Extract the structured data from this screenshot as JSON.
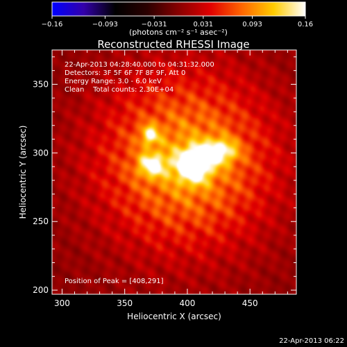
{
  "chart_data": {
    "type": "heatmap",
    "title": "Reconstructed RHESSI Image",
    "xlabel": "Heliocentric X (arcsec)",
    "ylabel": "Heliocentric Y (arcsec)",
    "xlim": [
      292,
      487
    ],
    "ylim": [
      197,
      375
    ],
    "x_ticks": [
      300,
      350,
      400,
      450
    ],
    "y_ticks": [
      200,
      250,
      300,
      350
    ],
    "colorbar": {
      "range": [
        -0.16,
        0.16
      ],
      "ticks": [
        {
          "value": -0.16,
          "label": "−0.16"
        },
        {
          "value": -0.093,
          "label": "−0.093"
        },
        {
          "value": -0.031,
          "label": "−0.031"
        },
        {
          "value": 0.031,
          "label": "0.031"
        },
        {
          "value": 0.093,
          "label": "0.093"
        },
        {
          "value": 0.16,
          "label": "0.16"
        }
      ],
      "units_label": "(photons cm⁻² s⁻¹ asec⁻²)",
      "stops": [
        "#0000ff",
        "#3300aa",
        "#000000",
        "#2a0000",
        "#880000",
        "#e00000",
        "#ff6600",
        "#ffcc00",
        "#ffffff"
      ]
    },
    "annotations": [
      "22-Apr-2013 04:28:40.000 to 04:31:32.000",
      "Detectors: 3F 5F 6F 7F 8F 9F, Att 0",
      "Energy Range: 3.0 - 6.0 keV",
      "Clean    Total counts: 2.30E+04"
    ],
    "peak_label": "Position of Peak = [408,291]",
    "peak": [
      408,
      291
    ],
    "sources": [
      {
        "x": 370,
        "y": 313,
        "amp": 0.55,
        "sx": 5,
        "sy": 5
      },
      {
        "x": 372,
        "y": 291,
        "amp": 0.6,
        "sx": 8,
        "sy": 6
      },
      {
        "x": 405,
        "y": 291,
        "amp": 1.0,
        "sx": 9,
        "sy": 8
      },
      {
        "x": 425,
        "y": 301,
        "amp": 0.65,
        "sx": 10,
        "sy": 6
      },
      {
        "x": 400,
        "y": 295,
        "amp": 0.55,
        "sx": 48,
        "sy": 42
      }
    ],
    "grid": false
  },
  "timestamp": "22-Apr-2013 06:22"
}
